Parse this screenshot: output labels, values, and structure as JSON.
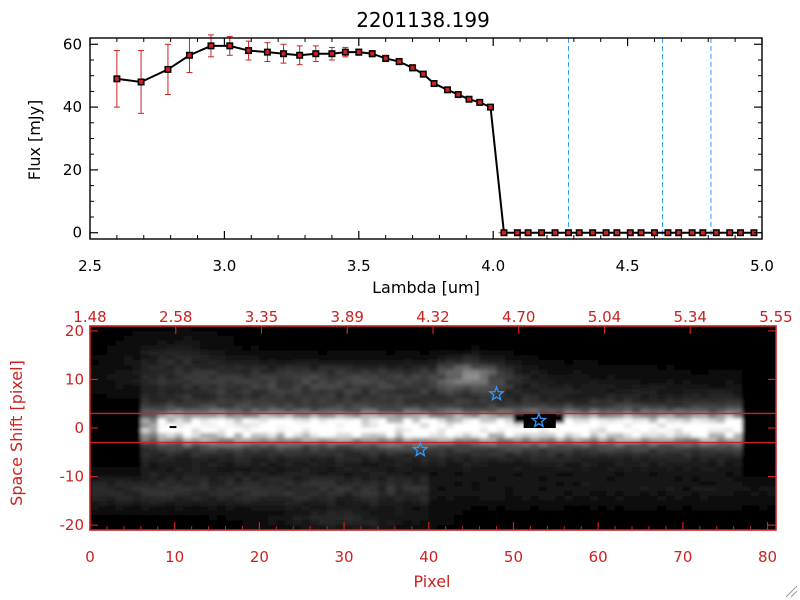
{
  "title": "2201138.199",
  "colors": {
    "axis": "#000000",
    "accent_red": "#cc2222",
    "marker_blue": "#3399ff",
    "dashed_blue": "#3399ff"
  },
  "chart_data": [
    {
      "type": "line",
      "title": "2201138.199",
      "xlabel": "Lambda [um]",
      "ylabel": "Flux [mJy]",
      "xlim": [
        2.5,
        5.0
      ],
      "ylim": [
        -2,
        62
      ],
      "xticks": [
        "2.5",
        "3.0",
        "3.5",
        "4.0",
        "4.5",
        "5.0"
      ],
      "yticks": [
        "0",
        "20",
        "40",
        "60"
      ],
      "grid": false,
      "series": [
        {
          "x": [
            2.6,
            2.69,
            2.79,
            2.87,
            2.95,
            3.02,
            3.09,
            3.16,
            3.22,
            3.28,
            3.34,
            3.4,
            3.45,
            3.5,
            3.55,
            3.6,
            3.65,
            3.7,
            3.74,
            3.78,
            3.83,
            3.87,
            3.91,
            3.95,
            3.99
          ],
          "y": [
            49,
            48,
            52,
            56.5,
            59.5,
            59.5,
            58,
            57.5,
            57,
            56.5,
            57,
            57,
            57.5,
            57.5,
            57,
            55.5,
            54.5,
            52.5,
            50.5,
            47.5,
            45.5,
            44,
            42.5,
            41.5,
            40
          ],
          "yerr": [
            9,
            10,
            8,
            5.5,
            3.5,
            3,
            3,
            3,
            3,
            3,
            2.5,
            2,
            1.5,
            1,
            1,
            1,
            1,
            1,
            0.5,
            0.5,
            0.5,
            0.5,
            0.5,
            0.5,
            0.5
          ]
        },
        {
          "x": [
            4.04,
            4.09,
            4.13,
            4.18,
            4.23,
            4.28,
            4.32,
            4.37,
            4.42,
            4.46,
            4.51,
            4.55,
            4.6,
            4.65,
            4.69,
            4.74,
            4.78,
            4.83,
            4.88,
            4.92,
            4.97
          ],
          "y": [
            0,
            0,
            0,
            0,
            0,
            0,
            0,
            0,
            0,
            0,
            0,
            0,
            0,
            0,
            0,
            0,
            0,
            0,
            0,
            0,
            0
          ]
        }
      ],
      "vlines": [
        4.28,
        4.63,
        4.81
      ]
    },
    {
      "type": "heatmap",
      "xlabel": "Pixel",
      "ylabel": "Space Shift [pixel]",
      "xlim": [
        0,
        81
      ],
      "ylim": [
        -21,
        21
      ],
      "xticks": [
        "0",
        "10",
        "20",
        "30",
        "40",
        "50",
        "60",
        "70",
        "80"
      ],
      "yticks": [
        "-20",
        "-10",
        "0",
        "10",
        "20"
      ],
      "top_axis_ticks": [
        "1.48",
        "2.58",
        "3.35",
        "3.89",
        "4.32",
        "4.70",
        "5.04",
        "5.34",
        "5.55"
      ],
      "hlines": [
        3,
        -3
      ],
      "stars": [
        {
          "x": 48,
          "y": 7
        },
        {
          "x": 39,
          "y": -4.5
        },
        {
          "x": 53,
          "y": 1.5
        }
      ]
    }
  ]
}
